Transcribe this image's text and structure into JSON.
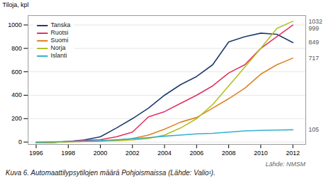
{
  "chart_data": {
    "type": "line",
    "ylabel": "Tiloja, kpl",
    "caption": "Kuva 6. Automaattilypsytilojen määrä Pohjoismaissa (Lähde: Valio¹).",
    "annotations": [
      "Lähde: NMSM"
    ],
    "x": [
      1996,
      1997,
      1998,
      1999,
      2000,
      2001,
      2002,
      2003,
      2004,
      2005,
      2006,
      2007,
      2008,
      2009,
      2010,
      2011,
      2012
    ],
    "series": [
      {
        "name": "Tanska",
        "color": "#1a3a6b",
        "values": [
          -5,
          -3,
          5,
          18,
          45,
          120,
          200,
          290,
          400,
          490,
          560,
          660,
          855,
          900,
          930,
          920,
          849
        ]
      },
      {
        "name": "Ruotsi",
        "color": "#e03060",
        "values": [
          -5,
          -3,
          5,
          15,
          20,
          45,
          85,
          215,
          260,
          330,
          400,
          480,
          590,
          660,
          800,
          900,
          999
        ]
      },
      {
        "name": "Suomi",
        "color": "#e08020",
        "values": [
          -5,
          -3,
          2,
          5,
          8,
          15,
          30,
          60,
          110,
          170,
          210,
          290,
          370,
          460,
          580,
          660,
          717
        ]
      },
      {
        "name": "Norja",
        "color": "#b0c020",
        "values": [
          -5,
          -3,
          2,
          5,
          8,
          12,
          18,
          30,
          60,
          120,
          200,
          320,
          480,
          640,
          800,
          970,
          1032
        ]
      },
      {
        "name": "Islanti",
        "color": "#30b0d0",
        "values": [
          0,
          2,
          5,
          8,
          12,
          20,
          28,
          38,
          50,
          60,
          70,
          75,
          85,
          95,
          100,
          103,
          105
        ]
      }
    ],
    "xlim": [
      1995.5,
      2012.8
    ],
    "ylim": [
      -20,
      1080
    ],
    "xticks": [
      1996,
      1998,
      2000,
      2002,
      2004,
      2006,
      2008,
      2010,
      2012
    ],
    "yticks": [
      0,
      200,
      400,
      600,
      800,
      1000
    ],
    "grid": true,
    "legend": "upper left",
    "end_labels": [
      {
        "name": "Norja",
        "value": 1032
      },
      {
        "name": "Ruotsi",
        "value": 999
      },
      {
        "name": "Tanska",
        "value": 849
      },
      {
        "name": "Suomi",
        "value": 717
      },
      {
        "name": "Islanti",
        "value": 105
      }
    ]
  }
}
